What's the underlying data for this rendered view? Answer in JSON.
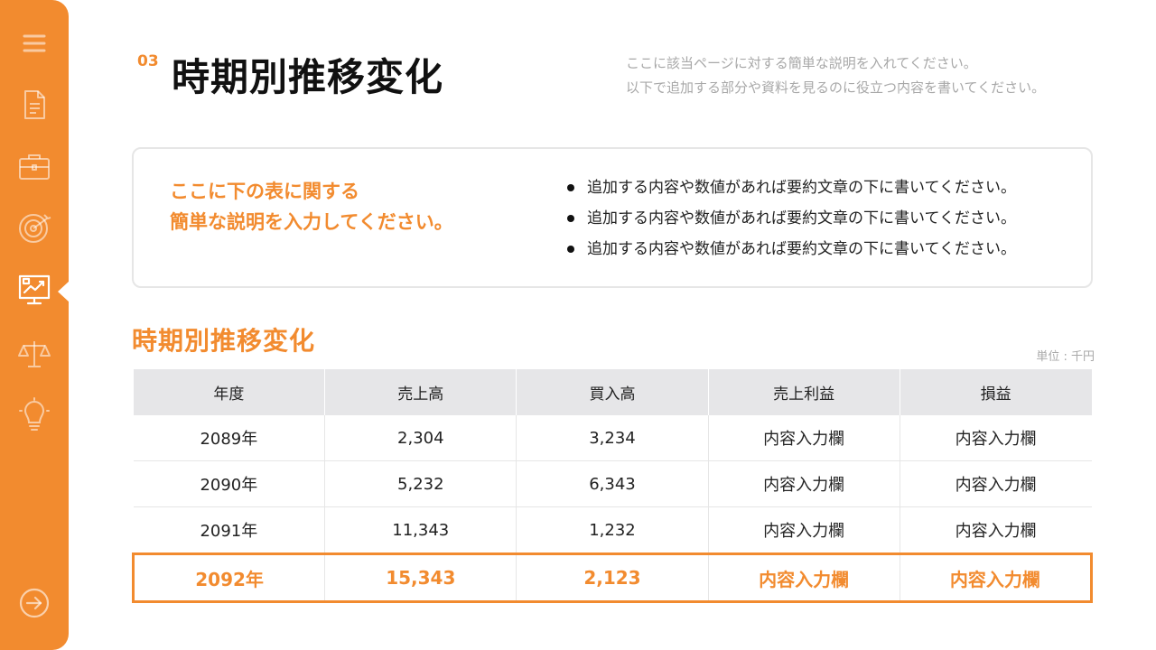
{
  "header": {
    "section_number": "03",
    "title": "時期別推移変化",
    "description_lines": [
      "ここに該当ページに対する簡単な説明を入れてください。",
      "以下で追加する部分や資料を見るのに役立つ内容を書いてください。"
    ]
  },
  "summary": {
    "heading_lines": [
      "ここに下の表に関する",
      "簡単な説明を入力してください。"
    ],
    "bullets": [
      "追加する内容や数値があれば要約文章の下に書いてください。",
      "追加する内容や数値があれば要約文章の下に書いてください。",
      "追加する内容や数値があれば要約文章の下に書いてください。"
    ]
  },
  "table": {
    "title": "時期別推移変化",
    "unit": "単位 : 千円",
    "headers": [
      "年度",
      "売上高",
      "買入高",
      "売上利益",
      "損益"
    ],
    "rows": [
      [
        "2089年",
        "2,304",
        "3,234",
        "内容入力欄",
        "内容入力欄"
      ],
      [
        "2090年",
        "5,232",
        "6,343",
        "内容入力欄",
        "内容入力欄"
      ],
      [
        "2091年",
        "11,343",
        "1,232",
        "内容入力欄",
        "内容入力欄"
      ],
      [
        "2092年",
        "15,343",
        "2,123",
        "内容入力欄",
        "内容入力欄"
      ]
    ]
  },
  "sidebar": {
    "icons": [
      "menu-icon",
      "document-icon",
      "briefcase-icon",
      "target-icon",
      "chart-presentation-icon",
      "scale-icon",
      "lightbulb-icon",
      "arrow-right-circle-icon"
    ],
    "active_index": 4
  },
  "colors": {
    "accent": "#f28b2f",
    "header_bg": "#e6e6e8",
    "muted_text": "#a8a8a8"
  }
}
